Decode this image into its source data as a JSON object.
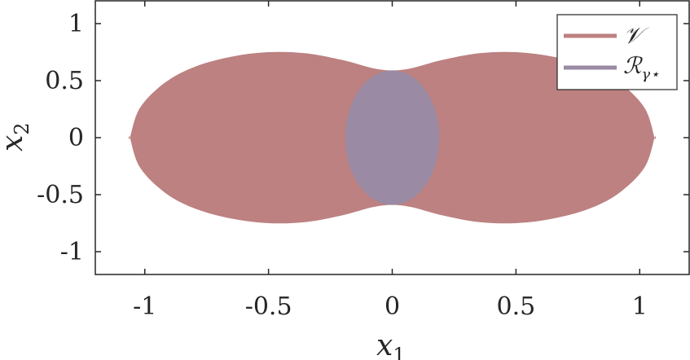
{
  "chart_data": {
    "type": "area",
    "title": "",
    "xlabel": {
      "base": "x",
      "sub": "1"
    },
    "ylabel": {
      "base": "x",
      "sub": "2"
    },
    "xlim": [
      -1.2,
      1.2
    ],
    "ylim": [
      -1.2,
      1.2
    ],
    "xticks": [
      -1,
      -0.5,
      0,
      0.5,
      1
    ],
    "xtick_labels": [
      "-1",
      "-0.5",
      "0",
      "0.5",
      "1"
    ],
    "yticks": [
      1,
      0.5,
      0,
      -0.5,
      -1
    ],
    "ytick_labels": [
      "1",
      "0.5",
      "0",
      "-0.5",
      "-1"
    ],
    "grid": false,
    "legend_position": "top-right",
    "series": [
      {
        "name": "𝒱",
        "color": "#bc8180",
        "boundary_upper": [
          [
            -1.06,
            0.0
          ],
          [
            -1.02,
            0.26
          ],
          [
            -0.92,
            0.48
          ],
          [
            -0.8,
            0.62
          ],
          [
            -0.65,
            0.71
          ],
          [
            -0.5,
            0.75
          ],
          [
            -0.35,
            0.74
          ],
          [
            -0.2,
            0.68
          ],
          [
            -0.08,
            0.61
          ],
          [
            0.0,
            0.59
          ],
          [
            0.08,
            0.61
          ],
          [
            0.2,
            0.68
          ],
          [
            0.35,
            0.74
          ],
          [
            0.5,
            0.75
          ],
          [
            0.65,
            0.71
          ],
          [
            0.8,
            0.62
          ],
          [
            0.92,
            0.48
          ],
          [
            1.02,
            0.26
          ],
          [
            1.06,
            0.0
          ]
        ],
        "symmetric_about_x_axis": true
      },
      {
        "name": "ℛ_γ⋆",
        "color": "#9a8aa4",
        "ellipse": {
          "center": [
            0,
            0
          ],
          "semi_axis_x": 0.19,
          "semi_axis_y": 0.59
        }
      }
    ],
    "legend": [
      {
        "label_base": "ℛ",
        "label_sub": "γ⋆"
      }
    ]
  }
}
